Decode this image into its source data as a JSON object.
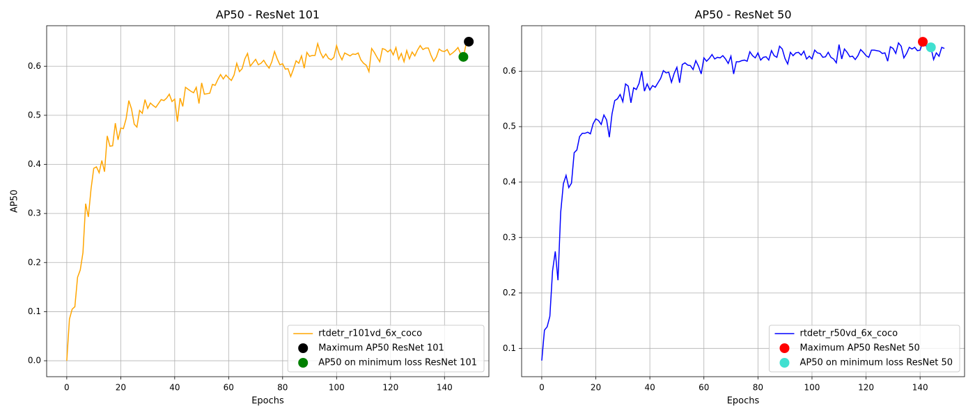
{
  "chart_data": [
    {
      "type": "line",
      "title": "AP50 - ResNet 101",
      "xlabel": "Epochs",
      "ylabel": "AP50",
      "xlim": [
        -7.45,
        156.45
      ],
      "ylim": [
        -0.0325,
        0.6825
      ],
      "xticks": [
        0,
        20,
        40,
        60,
        80,
        100,
        120,
        140
      ],
      "yticks": [
        {
          "value": 0,
          "label": "0.0"
        },
        0.1,
        0.2,
        0.3,
        0.4,
        0.5,
        0.6
      ],
      "grid": true,
      "legend": "lower right",
      "x": [
        0,
        1,
        2,
        3,
        4,
        5,
        6,
        7,
        8,
        9,
        10,
        11,
        12,
        13,
        14,
        15,
        16,
        17,
        18,
        19,
        20,
        21,
        22,
        23,
        24,
        25,
        26,
        27,
        28,
        29,
        30,
        31,
        32,
        33,
        34,
        35,
        36,
        37,
        38,
        39,
        40,
        41,
        42,
        43,
        44,
        45,
        46,
        47,
        48,
        49,
        50,
        51,
        52,
        53,
        54,
        55,
        56,
        57,
        58,
        59,
        60,
        61,
        62,
        63,
        64,
        65,
        66,
        67,
        68,
        69,
        70,
        71,
        72,
        73,
        74,
        75,
        76,
        77,
        78,
        79,
        80,
        81,
        82,
        83,
        84,
        85,
        86,
        87,
        88,
        89,
        90,
        91,
        92,
        93,
        94,
        95,
        96,
        97,
        98,
        99,
        100,
        101,
        102,
        103,
        104,
        105,
        106,
        107,
        108,
        109,
        110,
        111,
        112,
        113,
        114,
        115,
        116,
        117,
        118,
        119,
        120,
        121,
        122,
        123,
        124,
        125,
        126,
        127,
        128,
        129,
        130,
        131,
        132,
        133,
        134,
        135,
        136,
        137,
        138,
        139,
        140,
        141,
        142,
        143,
        144,
        145,
        146,
        147,
        148,
        149
      ],
      "series": [
        {
          "name": "rtdetr_r101vd_6x_coco",
          "type": "line",
          "color": "#ffa500",
          "values": [
            0.0,
            0.085,
            0.105,
            0.11,
            0.17,
            0.185,
            0.22,
            0.32,
            0.293,
            0.35,
            0.392,
            0.395,
            0.383,
            0.408,
            0.385,
            0.458,
            0.437,
            0.438,
            0.484,
            0.45,
            0.474,
            0.473,
            0.493,
            0.53,
            0.513,
            0.482,
            0.476,
            0.51,
            0.504,
            0.532,
            0.514,
            0.525,
            0.52,
            0.516,
            0.524,
            0.532,
            0.53,
            0.535,
            0.543,
            0.528,
            0.533,
            0.487,
            0.535,
            0.518,
            0.557,
            0.553,
            0.549,
            0.546,
            0.557,
            0.524,
            0.566,
            0.543,
            0.544,
            0.545,
            0.563,
            0.561,
            0.573,
            0.583,
            0.574,
            0.582,
            0.576,
            0.571,
            0.582,
            0.606,
            0.589,
            0.595,
            0.615,
            0.626,
            0.6,
            0.607,
            0.614,
            0.603,
            0.606,
            0.612,
            0.603,
            0.596,
            0.609,
            0.63,
            0.615,
            0.603,
            0.605,
            0.594,
            0.595,
            0.579,
            0.594,
            0.611,
            0.606,
            0.621,
            0.596,
            0.628,
            0.62,
            0.622,
            0.622,
            0.646,
            0.628,
            0.617,
            0.625,
            0.616,
            0.613,
            0.618,
            0.642,
            0.624,
            0.613,
            0.627,
            0.624,
            0.621,
            0.625,
            0.624,
            0.627,
            0.613,
            0.606,
            0.602,
            0.589,
            0.636,
            0.628,
            0.618,
            0.609,
            0.636,
            0.634,
            0.629,
            0.634,
            0.623,
            0.638,
            0.614,
            0.626,
            0.609,
            0.632,
            0.615,
            0.629,
            0.621,
            0.633,
            0.642,
            0.634,
            0.637,
            0.637,
            0.622,
            0.61,
            0.619,
            0.635,
            0.631,
            0.63,
            0.634,
            0.623,
            0.627,
            0.632,
            0.638,
            0.625,
            0.619,
            0.645,
            0.65
          ]
        },
        {
          "name": "Maximum AP50 ResNet 101",
          "type": "scatter",
          "color": "#000000",
          "x": [
            149
          ],
          "values": [
            0.65
          ]
        },
        {
          "name": "AP50 on minimum loss ResNet 101",
          "type": "scatter",
          "color": "#008000",
          "x": [
            147
          ],
          "values": [
            0.619
          ]
        }
      ]
    },
    {
      "type": "line",
      "title": "AP50 - ResNet 50",
      "xlabel": "Epochs",
      "xlim": [
        -7.45,
        156.45
      ],
      "ylim": [
        0.049,
        0.682
      ],
      "xticks": [
        0,
        20,
        40,
        60,
        80,
        100,
        120,
        140
      ],
      "yticks": [
        0.1,
        0.2,
        0.3,
        0.4,
        0.5,
        0.6
      ],
      "grid": true,
      "legend": "lower right",
      "x": [
        0,
        1,
        2,
        3,
        4,
        5,
        6,
        7,
        8,
        9,
        10,
        11,
        12,
        13,
        14,
        15,
        16,
        17,
        18,
        19,
        20,
        21,
        22,
        23,
        24,
        25,
        26,
        27,
        28,
        29,
        30,
        31,
        32,
        33,
        34,
        35,
        36,
        37,
        38,
        39,
        40,
        41,
        42,
        43,
        44,
        45,
        46,
        47,
        48,
        49,
        50,
        51,
        52,
        53,
        54,
        55,
        56,
        57,
        58,
        59,
        60,
        61,
        62,
        63,
        64,
        65,
        66,
        67,
        68,
        69,
        70,
        71,
        72,
        73,
        74,
        75,
        76,
        77,
        78,
        79,
        80,
        81,
        82,
        83,
        84,
        85,
        86,
        87,
        88,
        89,
        90,
        91,
        92,
        93,
        94,
        95,
        96,
        97,
        98,
        99,
        100,
        101,
        102,
        103,
        104,
        105,
        106,
        107,
        108,
        109,
        110,
        111,
        112,
        113,
        114,
        115,
        116,
        117,
        118,
        119,
        120,
        121,
        122,
        123,
        124,
        125,
        126,
        127,
        128,
        129,
        130,
        131,
        132,
        133,
        134,
        135,
        136,
        137,
        138,
        139,
        140,
        141,
        142,
        143,
        144,
        145,
        146,
        147,
        148,
        149
      ],
      "series": [
        {
          "name": "rtdetr_r50vd_6x_coco",
          "type": "line",
          "color": "#0000ff",
          "values": [
            0.078,
            0.133,
            0.139,
            0.158,
            0.24,
            0.275,
            0.223,
            0.345,
            0.397,
            0.412,
            0.39,
            0.398,
            0.453,
            0.458,
            0.482,
            0.488,
            0.488,
            0.49,
            0.487,
            0.505,
            0.514,
            0.511,
            0.504,
            0.521,
            0.512,
            0.481,
            0.523,
            0.547,
            0.55,
            0.558,
            0.545,
            0.577,
            0.573,
            0.543,
            0.57,
            0.567,
            0.578,
            0.6,
            0.564,
            0.577,
            0.566,
            0.574,
            0.571,
            0.579,
            0.587,
            0.601,
            0.597,
            0.598,
            0.58,
            0.596,
            0.607,
            0.579,
            0.612,
            0.615,
            0.611,
            0.61,
            0.603,
            0.619,
            0.609,
            0.595,
            0.624,
            0.618,
            0.623,
            0.63,
            0.622,
            0.625,
            0.624,
            0.628,
            0.622,
            0.614,
            0.627,
            0.595,
            0.617,
            0.617,
            0.619,
            0.62,
            0.618,
            0.635,
            0.628,
            0.624,
            0.633,
            0.62,
            0.625,
            0.626,
            0.62,
            0.637,
            0.628,
            0.625,
            0.645,
            0.64,
            0.623,
            0.613,
            0.634,
            0.628,
            0.633,
            0.634,
            0.629,
            0.636,
            0.622,
            0.627,
            0.622,
            0.638,
            0.633,
            0.632,
            0.625,
            0.626,
            0.634,
            0.625,
            0.622,
            0.615,
            0.648,
            0.622,
            0.64,
            0.634,
            0.626,
            0.627,
            0.621,
            0.628,
            0.639,
            0.634,
            0.628,
            0.625,
            0.638,
            0.638,
            0.637,
            0.636,
            0.632,
            0.633,
            0.618,
            0.644,
            0.641,
            0.632,
            0.651,
            0.645,
            0.624,
            0.632,
            0.643,
            0.64,
            0.643,
            0.637,
            0.638,
            0.653,
            0.648,
            0.638,
            0.643,
            0.621,
            0.633,
            0.627,
            0.643,
            0.641
          ]
        },
        {
          "name": "Maximum AP50 ResNet 50",
          "type": "scatter",
          "color": "#ff0000",
          "x": [
            141
          ],
          "values": [
            0.653
          ]
        },
        {
          "name": "AP50 on minimum loss ResNet 50",
          "type": "scatter",
          "color": "#40e0d0",
          "x": [
            144
          ],
          "values": [
            0.643
          ]
        }
      ]
    }
  ]
}
